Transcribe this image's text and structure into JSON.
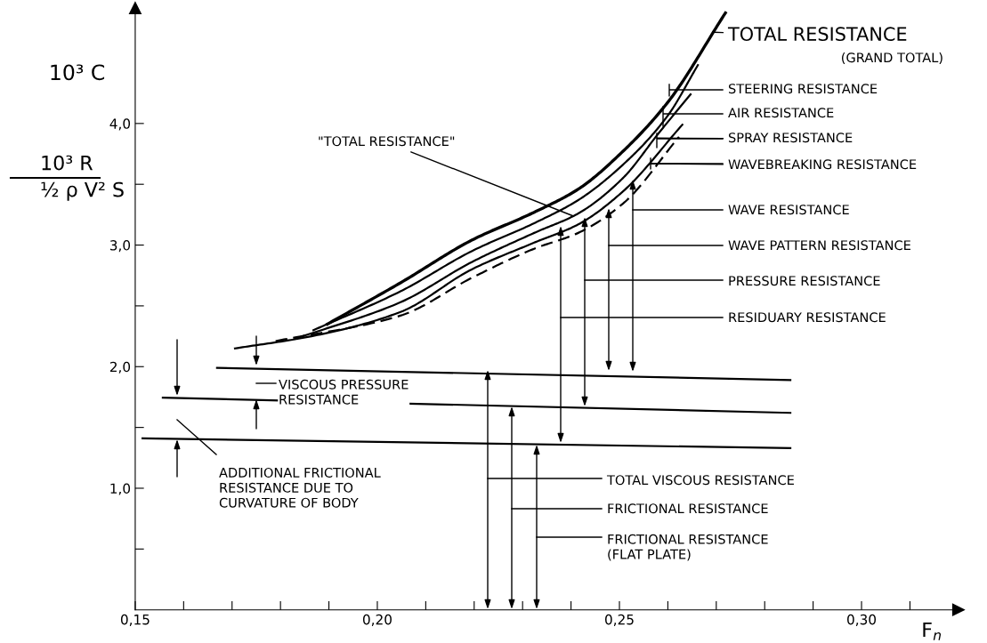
{
  "chart_data": {
    "type": "line",
    "xlabel": "F$_{n}$",
    "ylabel": "10³ C",
    "xlim": [
      0.15,
      0.32
    ],
    "ylim": [
      0,
      4.95
    ],
    "xticks": [
      {
        "value": 0.15,
        "label": "0,15"
      },
      {
        "value": 0.16,
        "label": null
      },
      {
        "value": 0.17,
        "label": null
      },
      {
        "value": 0.18,
        "label": null
      },
      {
        "value": 0.19,
        "label": null
      },
      {
        "value": 0.2,
        "label": "0,20"
      },
      {
        "value": 0.21,
        "label": null
      },
      {
        "value": 0.22,
        "label": null
      },
      {
        "value": 0.23,
        "label": null
      },
      {
        "value": 0.24,
        "label": null
      },
      {
        "value": 0.25,
        "label": "0,25"
      },
      {
        "value": 0.26,
        "label": null
      },
      {
        "value": 0.27,
        "label": null
      },
      {
        "value": 0.28,
        "label": null
      },
      {
        "value": 0.29,
        "label": null
      },
      {
        "value": 0.3,
        "label": "0,30"
      },
      {
        "value": 0.31,
        "label": null
      }
    ],
    "yticks": [
      {
        "value": 0.5,
        "label": null
      },
      {
        "value": 1.0,
        "label": "1,0"
      },
      {
        "value": 1.5,
        "label": null
      },
      {
        "value": 2.0,
        "label": "2,0"
      },
      {
        "value": 2.5,
        "label": null
      },
      {
        "value": 3.0,
        "label": "3,0"
      },
      {
        "value": 3.5,
        "label": null
      },
      {
        "value": 4.0,
        "label": "4,0"
      }
    ],
    "grid": false,
    "legend": false,
    "marker": "none",
    "line_style": "solid",
    "series": [
      {
        "color": "#000000",
        "x": [
          0.1897,
          0.2048,
          0.2195,
          0.2324,
          0.2415,
          0.2507,
          0.2599,
          0.2719
        ],
        "values": [
          2.35,
          2.69,
          3.04,
          3.27,
          3.46,
          3.77,
          4.17,
          4.91
        ]
      },
      {
        "color": "#000000",
        "x": [
          0.1868,
          0.2048,
          0.2195,
          0.2324,
          0.2415,
          0.2507,
          0.2599,
          0.2662
        ],
        "values": [
          2.3,
          2.62,
          2.95,
          3.18,
          3.37,
          3.66,
          4.06,
          4.48
        ]
      },
      {
        "color": "#000000",
        "x": [
          0.1831,
          0.2048,
          0.2195,
          0.2324,
          0.2415,
          0.2507,
          0.2581,
          0.2647
        ],
        "values": [
          2.23,
          2.53,
          2.86,
          3.1,
          3.26,
          3.55,
          3.92,
          4.24
        ]
      },
      {
        "color": "#000000",
        "x": [
          0.1706,
          0.1864,
          0.2048,
          0.2195,
          0.2324,
          0.2415,
          0.2507,
          0.263
        ],
        "values": [
          2.15,
          2.25,
          2.45,
          2.8,
          3.02,
          3.17,
          3.44,
          3.99
        ]
      },
      {
        "color": "#000000",
        "line_style": "dashed",
        "x": [
          0.179,
          0.2048,
          0.2195,
          0.2324,
          0.2415,
          0.2507,
          0.2623
        ],
        "values": [
          2.21,
          2.42,
          2.73,
          2.97,
          3.1,
          3.34,
          3.89
        ]
      },
      {
        "color": "#000000",
        "x": [
          0.1669,
          0.2853
        ],
        "values": [
          1.99,
          1.89
        ]
      },
      {
        "color": "#000000",
        "x": [
          0.1557,
          0.2853
        ],
        "values": [
          1.745,
          1.62
        ]
      },
      {
        "color": "#000000",
        "x": [
          0.1515,
          0.2853
        ],
        "values": [
          1.41,
          1.33
        ]
      }
    ],
    "annotations": [
      {
        "text": "TOTAL RESISTANCE",
        "x": 0.2695,
        "y": 4.75
      },
      "(GRAND TOTAL)",
      "STEERING RESISTANCE",
      {
        "text": "AIR RESISTANCE",
        "x": 0.259,
        "y": 4.08
      },
      {
        "text": "SPRAY RESISTANCE",
        "x": 0.2577,
        "y": 3.88
      },
      {
        "text": "WAVEBREAKING RESISTANCE",
        "x": 0.2564,
        "y": 3.67
      },
      "WAVE RESISTANCE",
      "WAVE PATTERN RESISTANCE",
      "PRESSURE RESISTANCE",
      "RESIDUARY RESISTANCE",
      {
        "text": "\"TOTAL RESISTANCE\"",
        "x": 0.2404,
        "y": 3.24
      },
      "VISCOUS PRESSURE\nRESISTANCE",
      "ADDITIONAL FRICTIONAL\nRESISTANCE DUE TO\nCURVATURE OF BODY",
      "TOTAL VISCOUS RESISTANCE",
      "FRICTIONAL RESISTANCE",
      "FRICTIONAL RESISTANCE\n(FLAT PLATE)",
      "10³ R",
      "½ ρ V² S"
    ]
  }
}
